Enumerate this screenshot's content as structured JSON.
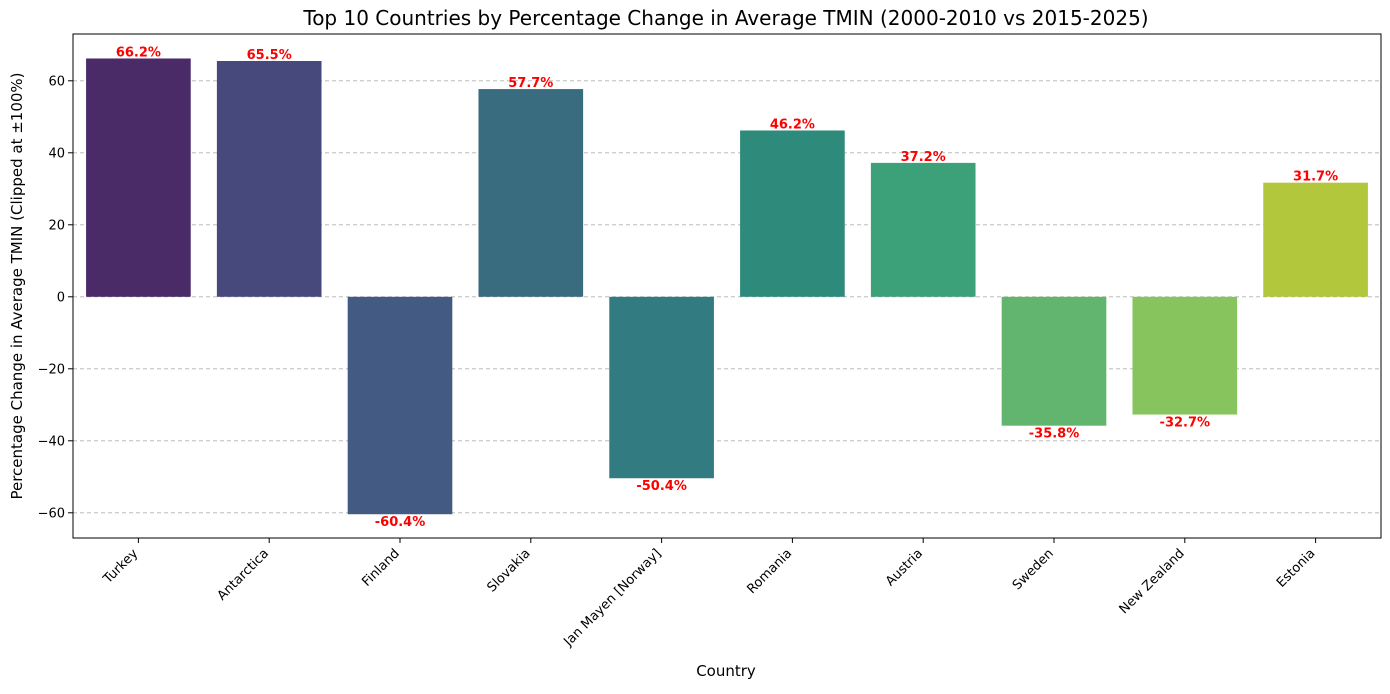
{
  "chart_data": {
    "type": "bar",
    "title": "Top 10 Countries by Percentage Change in Average TMIN (2000-2010 vs 2015-2025)",
    "xlabel": "Country",
    "ylabel": "Percentage Change in Average TMIN (Clipped at ±100%)",
    "categories": [
      "Turkey",
      "Antarctica",
      "Finland",
      "Slovakia",
      "Jan Mayen [Norway]",
      "Romania",
      "Austria",
      "Sweden",
      "New Zealand",
      "Estonia"
    ],
    "values": [
      66.2,
      65.5,
      -60.4,
      57.7,
      -50.4,
      46.2,
      37.2,
      -35.8,
      -32.7,
      31.7
    ],
    "value_labels": [
      "66.2%",
      "65.5%",
      "-60.4%",
      "57.7%",
      "-50.4%",
      "46.2%",
      "37.2%",
      "-35.8%",
      "-32.7%",
      "31.7%"
    ],
    "colors": [
      "#4a2a67",
      "#47497c",
      "#435b83",
      "#3a6c80",
      "#327b80",
      "#2e8a7a",
      "#3ca079",
      "#62b56f",
      "#87c45d",
      "#b2c73b"
    ],
    "label_color": "#ff0000",
    "ylim": [
      -67,
      73
    ],
    "yticks": [
      -60,
      -40,
      -20,
      0,
      20,
      40,
      60
    ],
    "ytick_labels": [
      "−60",
      "−40",
      "−20",
      "0",
      "20",
      "40",
      "60"
    ],
    "grid": "y-axis dashed",
    "legend": "none"
  }
}
